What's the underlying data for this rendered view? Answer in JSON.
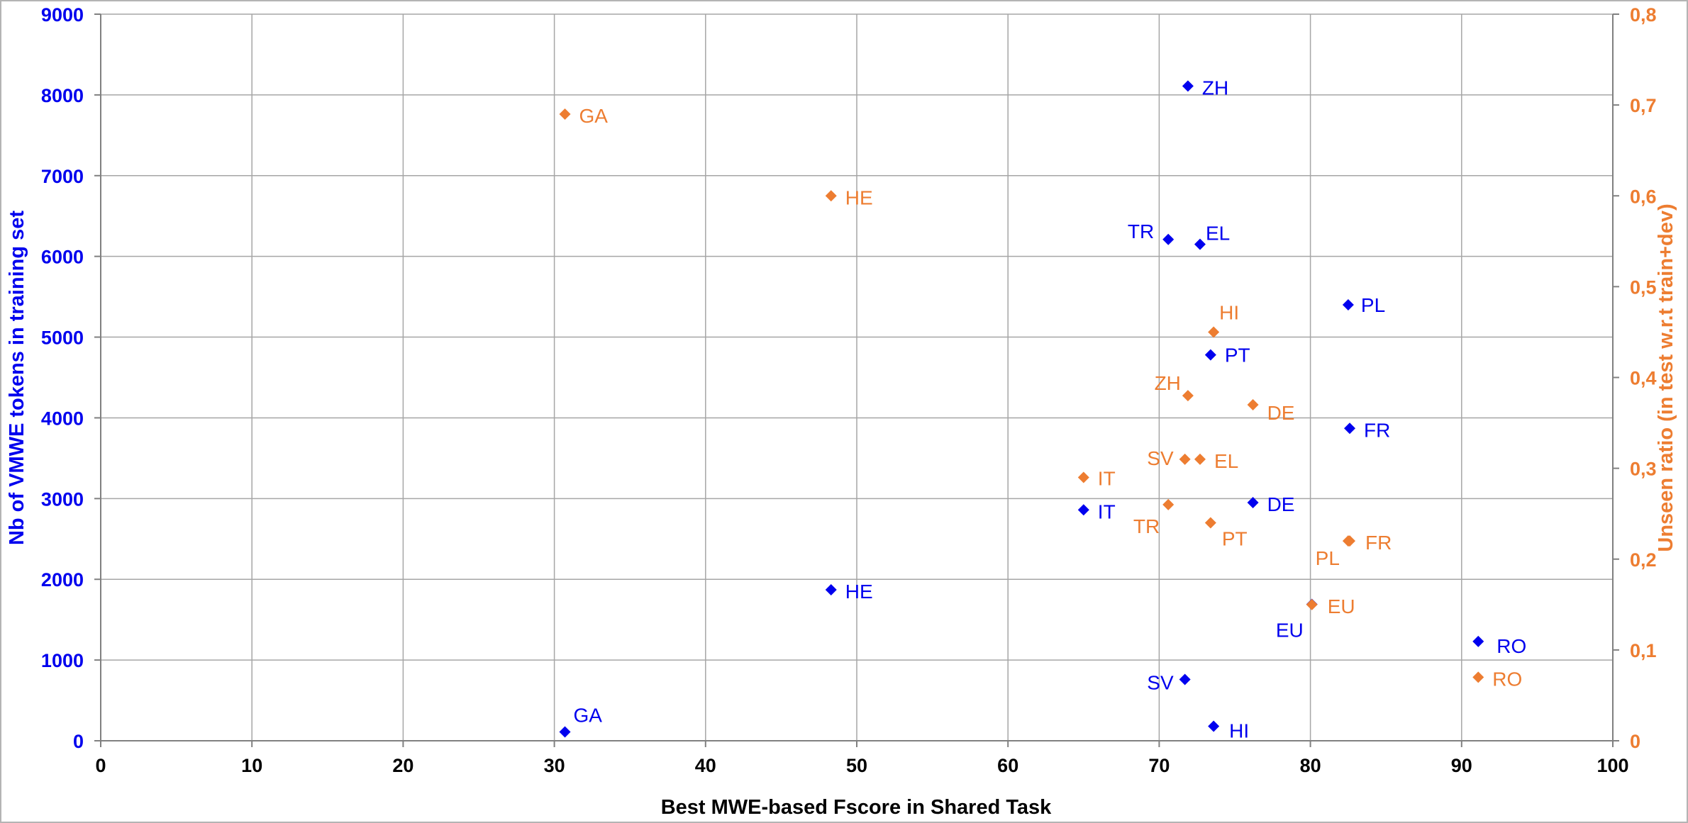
{
  "chart_data": {
    "type": "scatter",
    "xlabel": "Best MWE-based Fscore in Shared Task",
    "ylabel_left": "Nb of VMWE tokens in training set",
    "ylabel_right": "Unseen ratio (in test w.r.t train+dev)",
    "xlim": [
      0,
      100
    ],
    "ylim_left": [
      0,
      9000
    ],
    "ylim_right": [
      0,
      0.8
    ],
    "x_ticks": [
      "0",
      "10",
      "20",
      "30",
      "40",
      "50",
      "60",
      "70",
      "80",
      "90",
      "100"
    ],
    "y_left_ticks": [
      "0",
      "1000",
      "2000",
      "3000",
      "4000",
      "5000",
      "6000",
      "7000",
      "8000",
      "9000"
    ],
    "y_right_ticks": [
      "0",
      "0,1",
      "0,2",
      "0,3",
      "0,4",
      "0,5",
      "0,6",
      "0,7",
      "0,8"
    ],
    "grid": true,
    "legend": "none",
    "marker": "diamond",
    "series": [
      {
        "axis": "left",
        "color": "#0000ee",
        "points": [
          {
            "label": "ZH",
            "x": 71.9,
            "y": 8110
          },
          {
            "label": "TR",
            "x": 70.6,
            "y": 6210
          },
          {
            "label": "EL",
            "x": 72.7,
            "y": 6150
          },
          {
            "label": "PL",
            "x": 82.5,
            "y": 5400
          },
          {
            "label": "PT",
            "x": 73.4,
            "y": 4780
          },
          {
            "label": "FR",
            "x": 82.6,
            "y": 3870
          },
          {
            "label": "DE",
            "x": 76.2,
            "y": 2950
          },
          {
            "label": "IT",
            "x": 65.0,
            "y": 2860
          },
          {
            "label": "HE",
            "x": 48.3,
            "y": 1870
          },
          {
            "label": "EU",
            "x": 80.1,
            "y": 1690
          },
          {
            "label": "RO",
            "x": 91.1,
            "y": 1230
          },
          {
            "label": "SV",
            "x": 71.7,
            "y": 760
          },
          {
            "label": "HI",
            "x": 73.6,
            "y": 180
          },
          {
            "label": "GA",
            "x": 30.7,
            "y": 110
          }
        ]
      },
      {
        "axis": "right",
        "color": "#ed7d31",
        "points": [
          {
            "label": "GA",
            "x": 30.7,
            "y": 0.69
          },
          {
            "label": "HE",
            "x": 48.3,
            "y": 0.6
          },
          {
            "label": "HI",
            "x": 73.6,
            "y": 0.45
          },
          {
            "label": "ZH",
            "x": 71.9,
            "y": 0.38
          },
          {
            "label": "DE",
            "x": 76.2,
            "y": 0.37
          },
          {
            "label": "SV",
            "x": 71.7,
            "y": 0.31
          },
          {
            "label": "EL",
            "x": 72.7,
            "y": 0.31
          },
          {
            "label": "IT",
            "x": 65.0,
            "y": 0.29
          },
          {
            "label": "TR",
            "x": 70.6,
            "y": 0.26
          },
          {
            "label": "PT",
            "x": 73.4,
            "y": 0.24
          },
          {
            "label": "PL",
            "x": 82.5,
            "y": 0.22
          },
          {
            "label": "FR",
            "x": 82.6,
            "y": 0.22
          },
          {
            "label": "EU",
            "x": 80.1,
            "y": 0.15
          },
          {
            "label": "RO",
            "x": 91.1,
            "y": 0.07
          }
        ]
      }
    ]
  }
}
